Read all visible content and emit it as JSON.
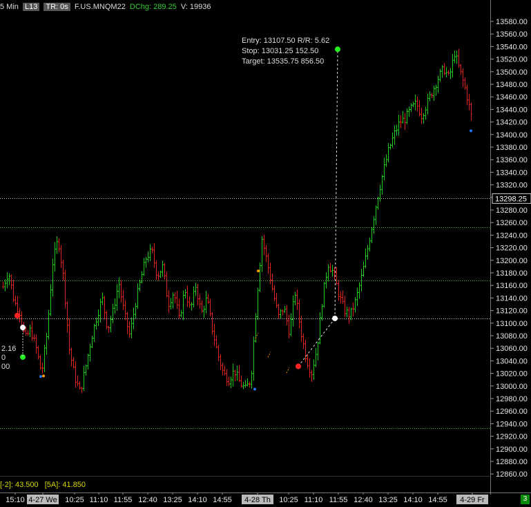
{
  "header": {
    "interval": "5 Min",
    "link": "L13",
    "tr": "TR: 0s",
    "symbol": "F.US.MNQM22",
    "dchg": "DChg: 289.25",
    "volume": "V: 19936"
  },
  "study_bar": {
    "item1": "[-2]: 43.500",
    "item2": "[5A]: 41.850"
  },
  "badge": "3",
  "trade": {
    "line1": "Entry: 13107.50  R/R: 5.62",
    "line2": "Stop: 13031.25  152.50",
    "line3": "Target: 13535.75  856.50"
  },
  "left_partial": {
    "a": "2.16",
    "b": "0",
    "c": "00"
  },
  "colors": {
    "background": "#000000",
    "up_bar": "#22cc22",
    "down_bar": "#dd2222",
    "ref_line_green": "#55bb33",
    "ref_line_white": "#cccccc",
    "entry_dot": "#ffffff",
    "target_dot": "#22ee22",
    "stop_dot": "#ff2222"
  },
  "chart_data": {
    "type": "bar",
    "title": "",
    "ylim": [
      12845,
      13595
    ],
    "y_ticks": [
      13580,
      13560,
      13540,
      13520,
      13500,
      13480,
      13460,
      13440,
      13420,
      13400,
      13380,
      13360,
      13340,
      13320,
      13300,
      13280,
      13260,
      13240,
      13220,
      13200,
      13180,
      13160,
      13140,
      13120,
      13100,
      13080,
      13060,
      13040,
      13020,
      13000,
      12980,
      12960,
      12940,
      12920,
      12900,
      12880,
      12860
    ],
    "y_tick_labels": [
      "13580.00",
      "13560.00",
      "13540.00",
      "13520.00",
      "13500.00",
      "13480.00",
      "13460.00",
      "13440.00",
      "13420.00",
      "13400.00",
      "13380.00",
      "13360.00",
      "13340.00",
      "13320.00",
      "13300.00",
      "13280.00",
      "13260.00",
      "13240.00",
      "13220.00",
      "13200.00",
      "13180.00",
      "13160.00",
      "13140.00",
      "13120.00",
      "13100.00",
      "13080.00",
      "13060.00",
      "13040.00",
      "13020.00",
      "13000.00",
      "12980.00",
      "12960.00",
      "12940.00",
      "12920.00",
      "12900.00",
      "12880.00",
      "12860.00"
    ],
    "x_tick_labels": [
      "15:10",
      "4-27 We",
      "10:25",
      "11:10",
      "11:55",
      "12:40",
      "13:25",
      "14:10",
      "14:55",
      "4-28 Th",
      "10:25",
      "11:10",
      "11:55",
      "12:40",
      "13:25",
      "14:10",
      "14:55",
      "4-29 Fr"
    ],
    "last_price_label": "13298.25",
    "last_price": 13298.25,
    "horizontal_lines": [
      {
        "price": 13298.25,
        "color": "white"
      },
      {
        "price": 13253,
        "color": "green"
      },
      {
        "price": 13168,
        "color": "green"
      },
      {
        "price": 13108,
        "color": "white"
      },
      {
        "price": 12933,
        "color": "green"
      }
    ],
    "trade_markers": {
      "entry": 13107.5,
      "stop": 13031.25,
      "target": 13535.75,
      "stop_distance": 152.5,
      "target_distance": 856.5,
      "risk_reward": 5.62
    },
    "waypoints": [
      13158,
      13182,
      13135,
      13118,
      13075,
      13090,
      13060,
      13020,
      13085,
      13195,
      13235,
      13170,
      13060,
      13015,
      12990,
      13030,
      13075,
      13110,
      13140,
      13090,
      13120,
      13165,
      13115,
      13080,
      13130,
      13170,
      13205,
      13215,
      13175,
      13190,
      13130,
      13150,
      13105,
      13155,
      13120,
      13160,
      13115,
      13140,
      13090,
      13050,
      13020,
      13010,
      13025,
      13005,
      12995,
      13010,
      13130,
      13235,
      13195,
      13150,
      13110,
      13125,
      13085,
      13150,
      13090,
      13045,
      13020,
      13060,
      13140,
      13195,
      13180,
      13145,
      13120,
      13112,
      13135,
      13170,
      13210,
      13255,
      13300,
      13340,
      13375,
      13400,
      13420,
      13425,
      13440,
      13450,
      13430,
      13450,
      13470,
      13490,
      13505,
      13490,
      13530,
      13500,
      13470,
      13430
    ]
  }
}
